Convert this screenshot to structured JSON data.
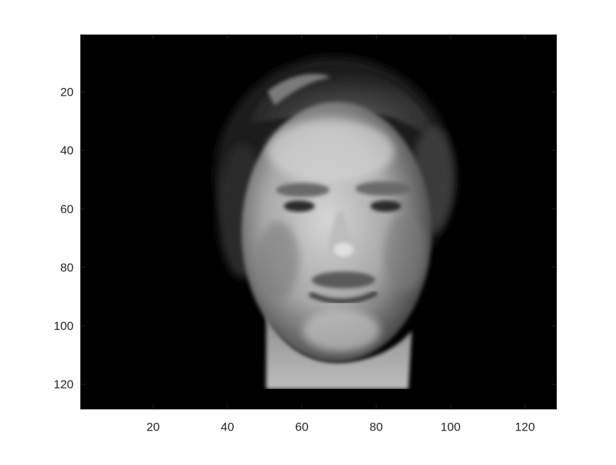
{
  "figure": {
    "background": "#ffffff",
    "subject": "grayscale photograph of a man's face on a black background, shown as an image plot"
  },
  "axes": {
    "x_ticks": [
      "20",
      "40",
      "60",
      "80",
      "100",
      "120"
    ],
    "y_ticks": [
      "20",
      "40",
      "60",
      "80",
      "100",
      "120"
    ],
    "x_range": [
      0.5,
      128.5
    ],
    "y_range": [
      0.5,
      128.5
    ],
    "y_direction": "reversed",
    "grid": false
  },
  "image": {
    "colormap": "gray",
    "background_color": "#000000",
    "tick_color": "#262626"
  }
}
